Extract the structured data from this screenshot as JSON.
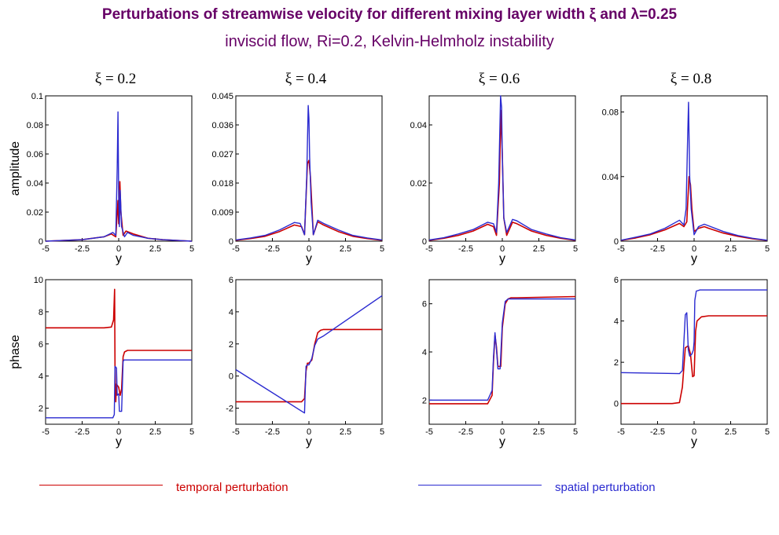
{
  "title": "Perturbations of streamwise velocity for different mixing layer width ξ and λ=0.25",
  "subtitle": "inviscid flow, Ri=0.2,   Kelvin-Helmholz instability",
  "colors": {
    "temporal": "#cc0000",
    "spatial": "#2a2ad0",
    "title": "#660066"
  },
  "legend": {
    "temporal": "temporal perturbation",
    "spatial": "spatial perturbation"
  },
  "chart_data": [
    {
      "type": "line",
      "row": "amplitude",
      "col": 0,
      "heading": "ξ = 0.2",
      "xlabel": "y",
      "ylabel": "amplitude",
      "xlim": [
        -5,
        5
      ],
      "ylim": [
        0,
        0.1
      ],
      "xticks": [
        "-5",
        "-2.5",
        "0",
        "2.5",
        "5"
      ],
      "yticks": [
        {
          "v": 0,
          "label": "0"
        },
        {
          "v": 0.02,
          "label": "0.02"
        },
        {
          "v": 0.04,
          "label": "0.04"
        },
        {
          "v": 0.06,
          "label": "0.06"
        },
        {
          "v": 0.08,
          "label": "0.08"
        },
        {
          "v": 0.1,
          "label": "0.1"
        }
      ],
      "series": [
        {
          "key": "temporal",
          "x": [
            -5,
            -2.5,
            -1,
            -0.5,
            -0.2,
            -0.05,
            0,
            0.08,
            0.15,
            0.3,
            0.5,
            1,
            2,
            3,
            5
          ],
          "y": [
            0,
            0.001,
            0.003,
            0.005,
            0.003,
            0.028,
            0.012,
            0.041,
            0.02,
            0.004,
            0.007,
            0.005,
            0.002,
            0.001,
            0
          ]
        },
        {
          "key": "spatial",
          "x": [
            -5,
            -2.5,
            -1,
            -0.4,
            -0.2,
            -0.1,
            -0.05,
            0,
            0.05,
            0.1,
            0.2,
            0.4,
            0.6,
            1,
            2,
            3,
            5
          ],
          "y": [
            0,
            0.001,
            0.003,
            0.006,
            0.004,
            0.05,
            0.089,
            0.03,
            0.01,
            0.035,
            0.01,
            0.003,
            0.006,
            0.004,
            0.002,
            0.001,
            0
          ]
        }
      ]
    },
    {
      "type": "line",
      "row": "amplitude",
      "col": 1,
      "heading": "ξ = 0.4",
      "xlabel": "y",
      "xlim": [
        -5,
        5
      ],
      "ylim": [
        0,
        0.045
      ],
      "xticks": [
        "-5",
        "-2.5",
        "0",
        "2.5",
        "5"
      ],
      "yticks": [
        {
          "v": 0,
          "label": "0"
        },
        {
          "v": 0.009,
          "label": "0.009"
        },
        {
          "v": 0.018,
          "label": "0.018"
        },
        {
          "v": 0.027,
          "label": "0.027"
        },
        {
          "v": 0.036,
          "label": "0.036"
        },
        {
          "v": 0.045,
          "label": "0.045"
        }
      ],
      "series": [
        {
          "key": "temporal",
          "x": [
            -5,
            -4,
            -3,
            -2,
            -1,
            -0.5,
            -0.3,
            -0.1,
            0,
            0.1,
            0.3,
            0.6,
            1,
            2,
            3,
            4,
            5
          ],
          "y": [
            0.0003,
            0.0008,
            0.0015,
            0.003,
            0.005,
            0.0045,
            0.002,
            0.024,
            0.025,
            0.02,
            0.002,
            0.006,
            0.005,
            0.003,
            0.0015,
            0.0008,
            0.0003
          ]
        },
        {
          "key": "spatial",
          "x": [
            -5,
            -4,
            -3,
            -2,
            -1,
            -0.6,
            -0.3,
            -0.15,
            -0.05,
            0,
            0.05,
            0.15,
            0.3,
            0.6,
            1,
            2,
            3,
            4,
            5
          ],
          "y": [
            0.0004,
            0.001,
            0.0018,
            0.0035,
            0.0058,
            0.0055,
            0.002,
            0.02,
            0.042,
            0.038,
            0.026,
            0.012,
            0.002,
            0.0065,
            0.0055,
            0.0035,
            0.0018,
            0.001,
            0.0004
          ]
        }
      ]
    },
    {
      "type": "line",
      "row": "amplitude",
      "col": 2,
      "heading": "ξ = 0.6",
      "xlabel": "y",
      "xlim": [
        -5,
        5
      ],
      "ylim": [
        0,
        0.05
      ],
      "xticks": [
        "-5",
        "-2.5",
        "0",
        "2.5",
        "5"
      ],
      "yticks": [
        {
          "v": 0,
          "label": "0"
        },
        {
          "v": 0.02,
          "label": "0.02"
        },
        {
          "v": 0.04,
          "label": "0.04"
        }
      ],
      "series": [
        {
          "key": "temporal",
          "x": [
            -5,
            -4,
            -3,
            -2,
            -1,
            -0.6,
            -0.4,
            -0.2,
            -0.1,
            0,
            0.1,
            0.3,
            0.7,
            1,
            2,
            3,
            4,
            5
          ],
          "y": [
            0.0003,
            0.001,
            0.002,
            0.0035,
            0.0058,
            0.005,
            0.002,
            0.02,
            0.045,
            0.03,
            0.008,
            0.002,
            0.0065,
            0.006,
            0.0035,
            0.002,
            0.001,
            0.0003
          ]
        },
        {
          "key": "spatial",
          "x": [
            -5,
            -4,
            -3,
            -2,
            -1,
            -0.6,
            -0.4,
            -0.25,
            -0.12,
            -0.05,
            0,
            0.1,
            0.3,
            0.7,
            1,
            2,
            3,
            4,
            5
          ],
          "y": [
            0.0004,
            0.0012,
            0.0025,
            0.004,
            0.0065,
            0.006,
            0.003,
            0.02,
            0.05,
            0.046,
            0.03,
            0.008,
            0.003,
            0.0075,
            0.007,
            0.004,
            0.0025,
            0.0012,
            0.0004
          ]
        }
      ]
    },
    {
      "type": "line",
      "row": "amplitude",
      "col": 3,
      "heading": "ξ = 0.8",
      "xlabel": "y",
      "xlim": [
        -5,
        5
      ],
      "ylim": [
        0,
        0.09
      ],
      "xticks": [
        "-5",
        "-2.5",
        "0",
        "2.5",
        "5"
      ],
      "yticks": [
        {
          "v": 0,
          "label": "0"
        },
        {
          "v": 0.04,
          "label": "0.04"
        },
        {
          "v": 0.08,
          "label": "0.08"
        }
      ],
      "series": [
        {
          "key": "temporal",
          "x": [
            -5,
            -4,
            -3,
            -2,
            -1,
            -0.7,
            -0.5,
            -0.35,
            -0.25,
            -0.15,
            0,
            0.3,
            0.7,
            1,
            2,
            3,
            4,
            5
          ],
          "y": [
            0.0005,
            0.002,
            0.004,
            0.007,
            0.011,
            0.009,
            0.012,
            0.04,
            0.035,
            0.02,
            0.006,
            0.008,
            0.009,
            0.008,
            0.005,
            0.003,
            0.0015,
            0.0005
          ]
        },
        {
          "key": "spatial",
          "x": [
            -5,
            -4,
            -3,
            -2,
            -1,
            -0.7,
            -0.55,
            -0.45,
            -0.38,
            -0.3,
            -0.2,
            0,
            0.3,
            0.7,
            1,
            2,
            3,
            4,
            5
          ],
          "y": [
            0.0006,
            0.0025,
            0.0045,
            0.008,
            0.013,
            0.01,
            0.02,
            0.06,
            0.086,
            0.04,
            0.02,
            0.004,
            0.009,
            0.0105,
            0.0095,
            0.006,
            0.0035,
            0.0018,
            0.0006
          ]
        }
      ]
    },
    {
      "type": "line",
      "row": "phase",
      "col": 0,
      "xlabel": "y",
      "ylabel": "phase",
      "xlim": [
        -5,
        5
      ],
      "ylim": [
        1,
        10
      ],
      "xticks": [
        "-5",
        "-2.5",
        "0",
        "2.5",
        "5"
      ],
      "yticks": [
        {
          "v": 2,
          "label": "2"
        },
        {
          "v": 4,
          "label": "4"
        },
        {
          "v": 6,
          "label": "6"
        },
        {
          "v": 8,
          "label": "8"
        },
        {
          "v": 10,
          "label": "10"
        }
      ],
      "series": [
        {
          "key": "temporal",
          "x": [
            -5,
            -1,
            -0.5,
            -0.35,
            -0.28,
            -0.25,
            -0.2,
            -0.15,
            0,
            0.1,
            0.2,
            0.3,
            0.4,
            0.6,
            5
          ],
          "y": [
            7,
            7,
            7.05,
            7.5,
            9.4,
            4.5,
            2.4,
            3.5,
            3.3,
            2.8,
            3.2,
            5.2,
            5.5,
            5.6,
            5.6
          ]
        },
        {
          "key": "spatial",
          "x": [
            -5,
            -0.4,
            -0.3,
            -0.25,
            -0.15,
            -0.1,
            0,
            0.05,
            0.2,
            0.3,
            0.35,
            5
          ],
          "y": [
            1.4,
            1.4,
            1.6,
            4.6,
            4.5,
            2.8,
            2.9,
            1.8,
            1.8,
            4.9,
            5,
            5
          ]
        }
      ]
    },
    {
      "type": "line",
      "row": "phase",
      "col": 1,
      "xlabel": "y",
      "xlim": [
        -5,
        5
      ],
      "ylim": [
        -3,
        6
      ],
      "xticks": [
        "-5",
        "-2.5",
        "0",
        "2.5",
        "5"
      ],
      "yticks": [
        {
          "v": -2,
          "label": "-2"
        },
        {
          "v": 0,
          "label": "0"
        },
        {
          "v": 2,
          "label": "2"
        },
        {
          "v": 4,
          "label": "4"
        },
        {
          "v": 6,
          "label": "6"
        }
      ],
      "series": [
        {
          "key": "temporal",
          "x": [
            -5,
            -0.5,
            -0.3,
            -0.2,
            -0.1,
            0,
            0.2,
            0.4,
            0.6,
            0.8,
            1,
            5
          ],
          "y": [
            -1.6,
            -1.6,
            -1.4,
            0.3,
            0.8,
            0.8,
            1,
            2,
            2.7,
            2.85,
            2.9,
            2.9
          ]
        },
        {
          "key": "spatial",
          "x": [
            -5,
            -0.3,
            -0.2,
            -0.1,
            0,
            0.2,
            0.4,
            0.6,
            1,
            5
          ],
          "y": [
            0.4,
            -2.3,
            0.6,
            0.7,
            0.7,
            1.1,
            1.9,
            2.3,
            2.5,
            5
          ]
        }
      ]
    },
    {
      "type": "line",
      "row": "phase",
      "col": 2,
      "xlabel": "y",
      "xlim": [
        -5,
        5
      ],
      "ylim": [
        1,
        7
      ],
      "xticks": [
        "-5",
        "-2.5",
        "0",
        "2.5",
        "5"
      ],
      "yticks": [
        {
          "v": 2,
          "label": "2"
        },
        {
          "v": 4,
          "label": "4"
        },
        {
          "v": 6,
          "label": "6"
        }
      ],
      "series": [
        {
          "key": "temporal",
          "x": [
            -5,
            -1,
            -0.7,
            -0.6,
            -0.5,
            -0.4,
            -0.3,
            -0.1,
            0,
            0.2,
            0.4,
            0.6,
            1,
            5
          ],
          "y": [
            1.85,
            1.85,
            2.2,
            3.6,
            4.7,
            4.2,
            3.4,
            3.4,
            5,
            6,
            6.2,
            6.25,
            6.25,
            6.3
          ]
        },
        {
          "key": "spatial",
          "x": [
            -5,
            -1,
            -0.7,
            -0.6,
            -0.5,
            -0.4,
            -0.3,
            -0.15,
            0,
            0.2,
            0.4,
            0.6,
            1,
            5
          ],
          "y": [
            2,
            2,
            2.4,
            3.8,
            4.8,
            4.1,
            3.3,
            3.3,
            5.2,
            6.1,
            6.2,
            6.2,
            6.2,
            6.2
          ]
        }
      ]
    },
    {
      "type": "line",
      "row": "phase",
      "col": 3,
      "xlabel": "y",
      "xlim": [
        -5,
        5
      ],
      "ylim": [
        -1,
        6
      ],
      "xticks": [
        "-5",
        "-2.5",
        "0",
        "2.5",
        "5"
      ],
      "yticks": [
        {
          "v": 0,
          "label": "0"
        },
        {
          "v": 2,
          "label": "2"
        },
        {
          "v": 4,
          "label": "4"
        },
        {
          "v": 6,
          "label": "6"
        }
      ],
      "series": [
        {
          "key": "temporal",
          "x": [
            -5,
            -1.5,
            -1,
            -0.8,
            -0.6,
            -0.4,
            -0.25,
            -0.1,
            0,
            0.1,
            0.2,
            0.5,
            1,
            5
          ],
          "y": [
            0,
            0,
            0.05,
            0.8,
            2.7,
            2.8,
            2.4,
            1.3,
            1.35,
            3.5,
            4,
            4.2,
            4.25,
            4.25
          ]
        },
        {
          "key": "spatial",
          "x": [
            -5,
            -1,
            -0.8,
            -0.6,
            -0.5,
            -0.4,
            -0.3,
            -0.15,
            -0.05,
            0,
            0.05,
            0.15,
            0.4,
            1,
            5
          ],
          "y": [
            1.5,
            1.45,
            1.6,
            4.3,
            4.4,
            2.6,
            2.3,
            2.4,
            2.6,
            3,
            5,
            5.45,
            5.5,
            5.5,
            5.5
          ]
        }
      ]
    }
  ]
}
